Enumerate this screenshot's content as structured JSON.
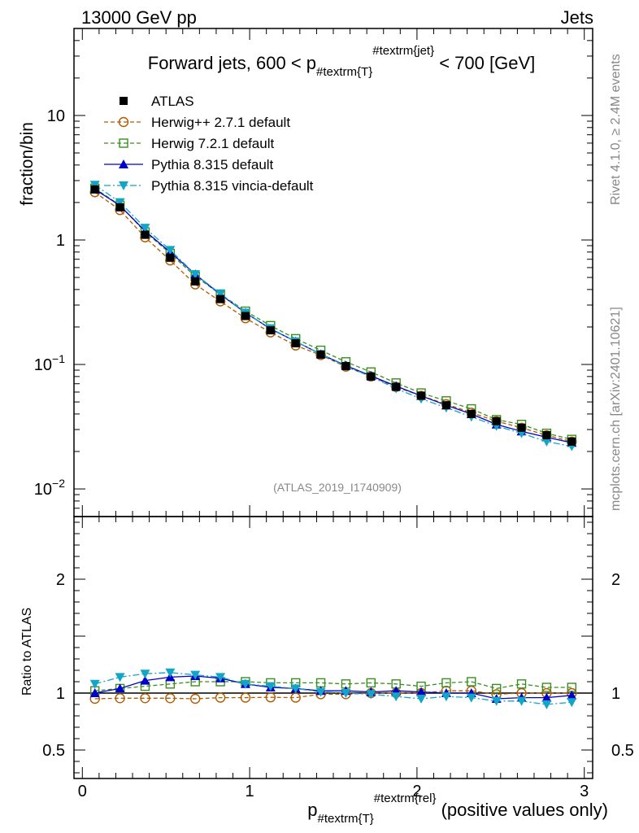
{
  "header": {
    "left": "13000 GeV pp",
    "right": "Jets"
  },
  "side_labels": {
    "rivet": "Rivet 4.1.0, ≥ 2.4M events",
    "mcplots": "mcplots.cern.ch [arXiv:2401.10621]"
  },
  "analysis_id": "(ATLAS_2019_I1740909)",
  "colors": {
    "ATLAS": "#000000",
    "Herwig++ 2.7.1 default": "#b35900",
    "Herwig 7.2.1 default": "#3a8e1f",
    "Pythia 8.315 default": "#0000cc",
    "Pythia 8.315 vincia-default": "#12a5c6"
  },
  "chart_data": [
    {
      "type": "line",
      "panel": "main",
      "title": "Forward jets, 600 < p_{#textrm{T}}^{#textrm{jet}} < 700 [GeV]",
      "title_parts": {
        "pre": "Forward jets, 600 < p",
        "sub": "#textrm{T}",
        "sup": "#textrm{jet}",
        "post": " < 700 [GeV]"
      },
      "ylabel": "fraction/bin",
      "yscale": "log",
      "ylim": [
        0.006,
        50
      ],
      "xlim": [
        -0.05,
        3.05
      ],
      "y_ticks": [
        {
          "value": 0.01,
          "base": "10",
          "exp": "−2"
        },
        {
          "value": 0.1,
          "base": "10",
          "exp": "−1"
        },
        {
          "value": 1,
          "label": "1"
        },
        {
          "value": 10,
          "label": "10"
        }
      ],
      "x": [
        0.075,
        0.225,
        0.375,
        0.525,
        0.675,
        0.825,
        0.975,
        1.125,
        1.275,
        1.425,
        1.575,
        1.725,
        1.875,
        2.025,
        2.175,
        2.325,
        2.475,
        2.625,
        2.775,
        2.925
      ],
      "series": [
        {
          "name": "ATLAS",
          "marker": "square-filled",
          "values": [
            2.55,
            1.83,
            1.1,
            0.72,
            0.465,
            0.335,
            0.245,
            0.188,
            0.148,
            0.12,
            0.097,
            0.08,
            0.066,
            0.056,
            0.047,
            0.04,
            0.035,
            0.031,
            0.027,
            0.024
          ]
        },
        {
          "name": "Herwig++ 2.7.1 default",
          "marker": "circle-open",
          "dash": "dashed",
          "values": [
            2.42,
            1.74,
            1.05,
            0.685,
            0.44,
            0.321,
            0.235,
            0.181,
            0.142,
            0.119,
            0.096,
            0.08,
            0.066,
            0.056,
            0.048,
            0.041,
            0.035,
            0.031,
            0.027,
            0.024
          ]
        },
        {
          "name": "Herwig 7.2.1 default",
          "marker": "square-open",
          "dash": "dashed",
          "values": [
            2.6,
            1.9,
            1.16,
            0.78,
            0.51,
            0.368,
            0.268,
            0.205,
            0.161,
            0.13,
            0.105,
            0.087,
            0.071,
            0.059,
            0.051,
            0.044,
            0.036,
            0.033,
            0.028,
            0.025
          ]
        },
        {
          "name": "Pythia 8.315 default",
          "marker": "triangle-up",
          "dash": "solid",
          "values": [
            2.55,
            1.89,
            1.18,
            0.8,
            0.53,
            0.365,
            0.26,
            0.193,
            0.153,
            0.121,
            0.098,
            0.081,
            0.067,
            0.056,
            0.047,
            0.04,
            0.033,
            0.029,
            0.026,
            0.0235
          ]
        },
        {
          "name": "Pythia 8.315 vincia-default",
          "marker": "triangle-down",
          "dash": "dashdot",
          "values": [
            2.77,
            2.01,
            1.25,
            0.83,
            0.53,
            0.37,
            0.26,
            0.195,
            0.153,
            0.121,
            0.097,
            0.08,
            0.064,
            0.053,
            0.045,
            0.038,
            0.032,
            0.028,
            0.024,
            0.022
          ]
        }
      ]
    },
    {
      "type": "line",
      "panel": "ratio",
      "ylabel": "Ratio to ATLAS",
      "xlabel": "p_{#textrm{T}}^{#textrm{rel}} (positive values only)",
      "xlabel_parts": {
        "pre": "p",
        "sub": "#textrm{T}",
        "sup": "#textrm{rel}",
        "post": " (positive values only)"
      },
      "ylim": [
        0.25,
        2.55
      ],
      "xlim": [
        -0.05,
        3.05
      ],
      "y_ticks": [
        0.5,
        1,
        2
      ],
      "x_ticks": [
        0,
        1,
        2,
        3
      ],
      "x": [
        0.075,
        0.225,
        0.375,
        0.525,
        0.675,
        0.825,
        0.975,
        1.125,
        1.275,
        1.425,
        1.575,
        1.725,
        1.875,
        2.025,
        2.175,
        2.325,
        2.475,
        2.625,
        2.775,
        2.925
      ],
      "series": [
        {
          "name": "Herwig++ 2.7.1 default",
          "values": [
            0.95,
            0.955,
            0.955,
            0.955,
            0.95,
            0.96,
            0.96,
            0.963,
            0.96,
            0.99,
            0.99,
            1.0,
            1.0,
            1.0,
            1.02,
            1.02,
            0.99,
            1.0,
            1.0,
            1.0
          ]
        },
        {
          "name": "Herwig 7.2.1 default",
          "values": [
            1.02,
            1.04,
            1.06,
            1.08,
            1.1,
            1.1,
            1.1,
            1.09,
            1.09,
            1.09,
            1.08,
            1.09,
            1.08,
            1.06,
            1.09,
            1.1,
            1.04,
            1.08,
            1.05,
            1.05
          ]
        },
        {
          "name": "Pythia 8.315 default",
          "values": [
            1.0,
            1.04,
            1.11,
            1.14,
            1.15,
            1.13,
            1.08,
            1.05,
            1.04,
            1.02,
            1.02,
            1.01,
            1.02,
            1.01,
            1.0,
            1.0,
            0.95,
            0.96,
            0.96,
            0.98
          ]
        },
        {
          "name": "Pythia 8.315 vincia-default",
          "values": [
            1.08,
            1.14,
            1.17,
            1.18,
            1.16,
            1.14,
            1.08,
            1.06,
            1.04,
            1.01,
            1.0,
            0.99,
            0.97,
            0.95,
            0.97,
            0.96,
            0.93,
            0.93,
            0.9,
            0.92
          ]
        }
      ]
    }
  ]
}
